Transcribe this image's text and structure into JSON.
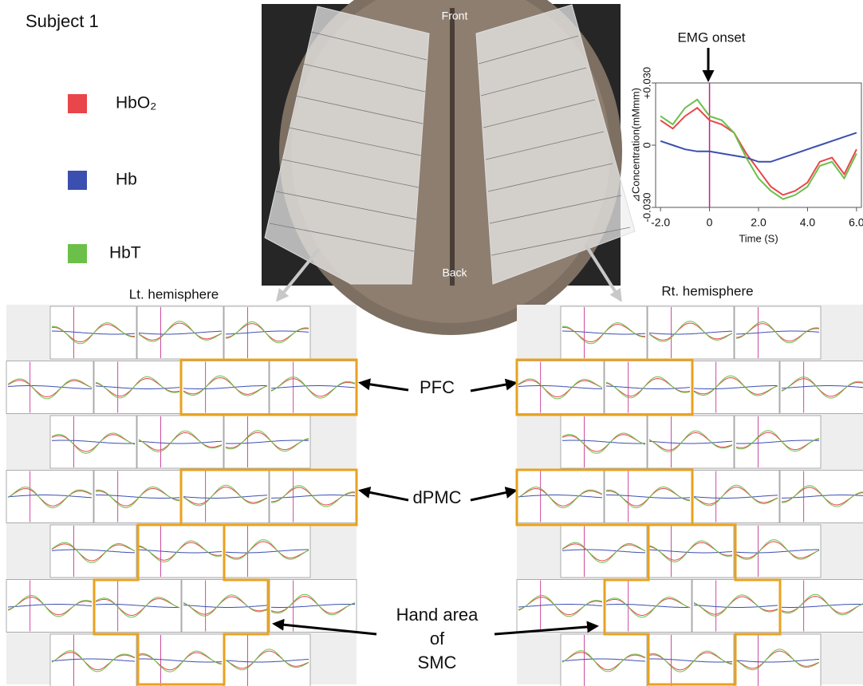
{
  "chart_data": {
    "type": "line",
    "annotation": {
      "text": "EMG onset",
      "x": 0
    },
    "xlabel": "Time (S)",
    "ylabel": "⊿Concentration(mMmm)",
    "x": [
      -2.0,
      -1.5,
      -1.0,
      -0.5,
      0,
      0.5,
      1.0,
      1.5,
      2.0,
      2.5,
      3.0,
      3.5,
      4.0,
      4.5,
      5.0,
      5.5,
      6.0
    ],
    "series": [
      {
        "name": "HbO₂",
        "color": "#e8464a",
        "values": [
          0.012,
          0.008,
          0.014,
          0.018,
          0.012,
          0.01,
          0.006,
          -0.004,
          -0.012,
          -0.02,
          -0.024,
          -0.022,
          -0.018,
          -0.008,
          -0.006,
          -0.014,
          -0.002
        ]
      },
      {
        "name": "Hb",
        "color": "#3a4fb0",
        "values": [
          0.002,
          0.0,
          -0.002,
          -0.003,
          -0.003,
          -0.004,
          -0.005,
          -0.006,
          -0.008,
          -0.008,
          -0.006,
          -0.004,
          -0.002,
          0.0,
          0.002,
          0.004,
          0.006
        ]
      },
      {
        "name": "HbT",
        "color": "#6cc04a",
        "values": [
          0.014,
          0.01,
          0.018,
          0.022,
          0.014,
          0.012,
          0.006,
          -0.006,
          -0.016,
          -0.022,
          -0.026,
          -0.024,
          -0.02,
          -0.01,
          -0.008,
          -0.016,
          -0.004
        ]
      }
    ],
    "xlim": [
      -2.2,
      6.2
    ],
    "ylim": [
      -0.03,
      0.03
    ],
    "xticks": [
      {
        "value": -2.0,
        "label": "-2.0"
      },
      0,
      {
        "value": 2.0,
        "label": "2.0"
      },
      {
        "value": 4.0,
        "label": "4.0"
      },
      {
        "value": 6.0,
        "label": "6.0"
      }
    ],
    "yticks": [
      {
        "value": -0.03,
        "label": "-0.030"
      },
      0,
      {
        "value": 0.03,
        "label": "+0.030"
      }
    ]
  },
  "figure": {
    "subject": "Subject 1",
    "brain": {
      "front": "Front",
      "back": "Back"
    },
    "hemispheres": [
      "Lt. hemisphere",
      "Rt. hemisphere"
    ],
    "regions": {
      "pfc": "PFC",
      "dpmc": "dPMC",
      "hand": [
        "Hand area",
        "of",
        "SMC"
      ]
    }
  }
}
